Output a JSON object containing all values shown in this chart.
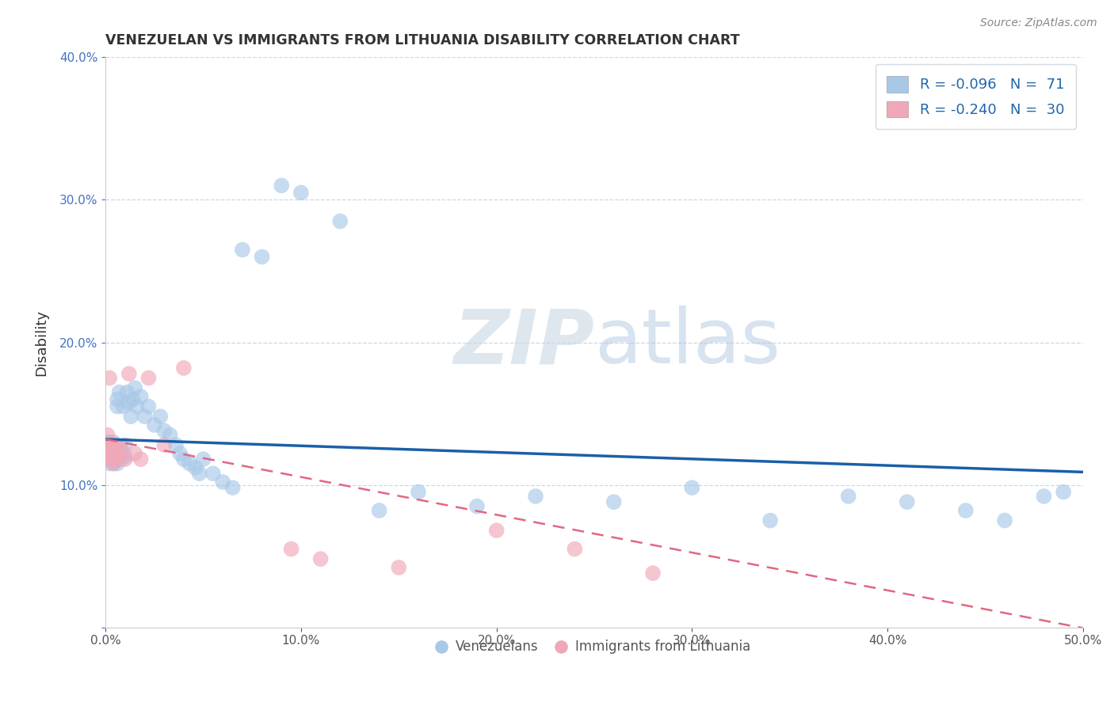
{
  "title": "VENEZUELAN VS IMMIGRANTS FROM LITHUANIA DISABILITY CORRELATION CHART",
  "source": "Source: ZipAtlas.com",
  "ylabel": "Disability",
  "xlim": [
    0.0,
    0.5
  ],
  "ylim": [
    0.0,
    0.4
  ],
  "blue_scatter_color": "#a8c8e8",
  "pink_scatter_color": "#f0a8b8",
  "blue_line_color": "#1a5fa8",
  "pink_line_color": "#e06880",
  "watermark_color": "#dde8f0",
  "background_color": "#ffffff",
  "grid_color": "#c8d8e8",
  "R_blue": -0.096,
  "N_blue": 71,
  "R_pink": -0.24,
  "N_pink": 30,
  "blue_intercept": 0.132,
  "blue_slope": -0.046,
  "pink_intercept": 0.132,
  "pink_slope": -0.265,
  "blue_x": [
    0.001,
    0.001,
    0.001,
    0.001,
    0.001,
    0.002,
    0.002,
    0.002,
    0.002,
    0.002,
    0.003,
    0.003,
    0.003,
    0.003,
    0.004,
    0.004,
    0.004,
    0.005,
    0.005,
    0.005,
    0.006,
    0.006,
    0.006,
    0.007,
    0.007,
    0.008,
    0.008,
    0.009,
    0.01,
    0.01,
    0.011,
    0.012,
    0.013,
    0.014,
    0.015,
    0.016,
    0.018,
    0.02,
    0.022,
    0.025,
    0.028,
    0.03,
    0.033,
    0.036,
    0.038,
    0.04,
    0.043,
    0.046,
    0.048,
    0.05,
    0.055,
    0.06,
    0.065,
    0.07,
    0.08,
    0.09,
    0.1,
    0.12,
    0.14,
    0.16,
    0.19,
    0.22,
    0.26,
    0.3,
    0.34,
    0.38,
    0.41,
    0.44,
    0.46,
    0.48,
    0.49
  ],
  "blue_y": [
    0.128,
    0.122,
    0.118,
    0.125,
    0.13,
    0.12,
    0.128,
    0.115,
    0.122,
    0.13,
    0.118,
    0.125,
    0.128,
    0.12,
    0.115,
    0.122,
    0.13,
    0.118,
    0.125,
    0.128,
    0.115,
    0.16,
    0.155,
    0.12,
    0.165,
    0.118,
    0.125,
    0.155,
    0.12,
    0.128,
    0.165,
    0.158,
    0.148,
    0.16,
    0.168,
    0.155,
    0.162,
    0.148,
    0.155,
    0.142,
    0.148,
    0.138,
    0.135,
    0.128,
    0.122,
    0.118,
    0.115,
    0.112,
    0.108,
    0.118,
    0.108,
    0.102,
    0.098,
    0.265,
    0.26,
    0.31,
    0.305,
    0.285,
    0.082,
    0.095,
    0.085,
    0.092,
    0.088,
    0.098,
    0.075,
    0.092,
    0.088,
    0.082,
    0.075,
    0.092,
    0.095
  ],
  "pink_x": [
    0.001,
    0.001,
    0.001,
    0.002,
    0.002,
    0.002,
    0.003,
    0.003,
    0.003,
    0.004,
    0.004,
    0.005,
    0.005,
    0.006,
    0.006,
    0.007,
    0.008,
    0.01,
    0.012,
    0.015,
    0.018,
    0.022,
    0.03,
    0.04,
    0.095,
    0.11,
    0.15,
    0.2,
    0.24,
    0.28
  ],
  "pink_y": [
    0.128,
    0.135,
    0.125,
    0.12,
    0.175,
    0.128,
    0.118,
    0.128,
    0.122,
    0.115,
    0.125,
    0.12,
    0.128,
    0.118,
    0.125,
    0.12,
    0.125,
    0.118,
    0.178,
    0.122,
    0.118,
    0.175,
    0.128,
    0.182,
    0.055,
    0.048,
    0.042,
    0.068,
    0.055,
    0.038
  ]
}
